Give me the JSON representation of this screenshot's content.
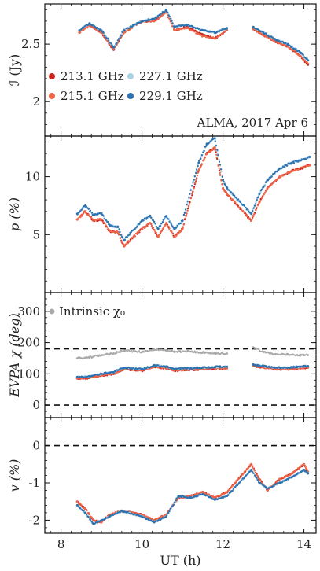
{
  "chart_data": [
    {
      "type": "scatter",
      "ylabel": "ℐ (Jy)",
      "ylim": [
        1.7,
        2.85
      ],
      "yticks": [
        2.0,
        2.5
      ],
      "xlim": [
        7.6,
        14.3
      ],
      "annotation": "ALMA, 2017 Apr 6",
      "legend": {
        "placement": "center-left",
        "entries": [
          {
            "label": "213.1 GHz",
            "color": "#c7261e"
          },
          {
            "label": "227.1 GHz",
            "color": "#a9d3e5"
          },
          {
            "label": "215.1 GHz",
            "color": "#ef6548"
          },
          {
            "label": "229.1 GHz",
            "color": "#2c72b0"
          }
        ]
      },
      "series": [
        {
          "name": "213.1 GHz",
          "color": "#c7261e",
          "x": [
            8.45,
            8.7,
            9.0,
            9.3,
            9.55,
            10.0,
            10.3,
            10.6,
            10.8,
            11.1,
            11.5,
            11.8,
            12.1,
            12.75,
            13.0,
            13.3,
            13.6,
            13.9,
            14.1
          ],
          "values": [
            2.6,
            2.67,
            2.6,
            2.45,
            2.6,
            2.7,
            2.7,
            2.78,
            2.62,
            2.65,
            2.58,
            2.55,
            2.62,
            2.63,
            2.58,
            2.52,
            2.48,
            2.4,
            2.32
          ]
        },
        {
          "name": "215.1 GHz",
          "color": "#ef6548",
          "x": [
            8.45,
            8.7,
            9.0,
            9.3,
            9.55,
            10.0,
            10.3,
            10.6,
            10.8,
            11.1,
            11.5,
            11.8,
            12.1,
            12.75,
            13.0,
            13.3,
            13.6,
            13.9,
            14.1
          ],
          "values": [
            2.6,
            2.66,
            2.6,
            2.46,
            2.6,
            2.7,
            2.7,
            2.78,
            2.62,
            2.64,
            2.57,
            2.55,
            2.62,
            2.63,
            2.58,
            2.52,
            2.48,
            2.4,
            2.33
          ]
        },
        {
          "name": "227.1 GHz",
          "color": "#a9d3e5",
          "x": [
            8.45,
            8.7,
            9.0,
            9.3,
            9.55,
            10.0,
            10.3,
            10.6,
            10.8,
            11.1,
            11.5,
            11.8,
            12.1,
            12.75,
            13.0,
            13.3,
            13.6,
            13.9,
            14.1
          ],
          "values": [
            2.62,
            2.68,
            2.62,
            2.47,
            2.62,
            2.7,
            2.72,
            2.8,
            2.65,
            2.67,
            2.62,
            2.6,
            2.64,
            2.65,
            2.6,
            2.54,
            2.5,
            2.43,
            2.36
          ]
        },
        {
          "name": "229.1 GHz",
          "color": "#2c72b0",
          "x": [
            8.45,
            8.7,
            9.0,
            9.3,
            9.55,
            10.0,
            10.3,
            10.6,
            10.8,
            11.1,
            11.5,
            11.8,
            12.1,
            12.75,
            13.0,
            13.3,
            13.6,
            13.9,
            14.1
          ],
          "values": [
            2.62,
            2.68,
            2.62,
            2.47,
            2.62,
            2.7,
            2.72,
            2.8,
            2.65,
            2.67,
            2.62,
            2.6,
            2.64,
            2.65,
            2.6,
            2.54,
            2.5,
            2.43,
            2.36
          ]
        }
      ]
    },
    {
      "type": "scatter",
      "ylabel": "p (%)",
      "ylim": [
        0,
        13.5
      ],
      "yticks": [
        5,
        10
      ],
      "xlim": [
        7.6,
        14.3
      ],
      "series": [
        {
          "name": "213.1 GHz",
          "color": "#c7261e",
          "x": [
            8.4,
            8.6,
            8.8,
            9.0,
            9.2,
            9.4,
            9.55,
            10.0,
            10.2,
            10.4,
            10.6,
            10.8,
            11.0,
            11.4,
            11.6,
            11.8,
            12.0,
            12.1,
            12.7,
            12.9,
            13.1,
            13.4,
            13.7,
            14.0,
            14.15
          ],
          "values": [
            6.3,
            7.0,
            6.2,
            6.3,
            5.3,
            5.2,
            4.0,
            5.5,
            6.0,
            4.8,
            6.0,
            4.8,
            5.5,
            10.5,
            12.0,
            12.5,
            9.0,
            8.5,
            6.2,
            7.8,
            9.0,
            10.0,
            10.5,
            10.8,
            11.0
          ]
        },
        {
          "name": "215.1 GHz",
          "color": "#ef6548",
          "x": [
            8.4,
            8.6,
            8.8,
            9.0,
            9.2,
            9.4,
            9.55,
            10.0,
            10.2,
            10.4,
            10.6,
            10.8,
            11.0,
            11.4,
            11.6,
            11.8,
            12.0,
            12.1,
            12.7,
            12.9,
            13.1,
            13.4,
            13.7,
            14.0,
            14.15
          ],
          "values": [
            6.3,
            7.0,
            6.2,
            6.3,
            5.3,
            5.2,
            4.0,
            5.5,
            6.0,
            4.8,
            6.0,
            4.8,
            5.5,
            10.5,
            12.0,
            12.5,
            9.0,
            8.5,
            6.2,
            7.8,
            9.0,
            10.0,
            10.5,
            10.8,
            11.0
          ]
        },
        {
          "name": "227.1 GHz",
          "color": "#a9d3e5",
          "x": [
            8.4,
            8.6,
            8.8,
            9.0,
            9.2,
            9.4,
            9.55,
            10.0,
            10.2,
            10.4,
            10.6,
            10.8,
            11.0,
            11.4,
            11.6,
            11.8,
            12.0,
            12.1,
            12.7,
            12.9,
            13.1,
            13.4,
            13.7,
            14.0,
            14.15
          ],
          "values": [
            6.8,
            7.5,
            6.7,
            6.8,
            5.8,
            5.7,
            4.5,
            6.2,
            6.6,
            5.5,
            6.6,
            5.5,
            6.2,
            11.2,
            12.8,
            13.3,
            9.7,
            9.0,
            6.8,
            8.5,
            9.7,
            10.7,
            11.2,
            11.5,
            11.7
          ]
        },
        {
          "name": "229.1 GHz",
          "color": "#2c72b0",
          "x": [
            8.4,
            8.6,
            8.8,
            9.0,
            9.2,
            9.4,
            9.55,
            10.0,
            10.2,
            10.4,
            10.6,
            10.8,
            11.0,
            11.4,
            11.6,
            11.8,
            12.0,
            12.1,
            12.7,
            12.9,
            13.1,
            13.4,
            13.7,
            14.0,
            14.15
          ],
          "values": [
            6.8,
            7.5,
            6.7,
            6.8,
            5.8,
            5.7,
            4.5,
            6.2,
            6.6,
            5.5,
            6.6,
            5.5,
            6.2,
            11.2,
            12.8,
            13.3,
            9.7,
            9.0,
            6.8,
            8.5,
            9.7,
            10.7,
            11.2,
            11.5,
            11.7
          ]
        }
      ]
    },
    {
      "type": "scatter",
      "ylabel": "EVPA χ (deg)",
      "ylim": [
        -40,
        360
      ],
      "yticks": [
        0,
        100,
        200,
        300
      ],
      "xlim": [
        7.6,
        14.3
      ],
      "hlines": [
        0,
        180
      ],
      "legend": {
        "placement": "top-left",
        "entries": [
          {
            "label": "Intrinsic χ₀",
            "color": "#aaaaaa"
          }
        ]
      },
      "series": [
        {
          "name": "Intrinsic χ₀",
          "color": "#aaaaaa",
          "x": [
            8.4,
            8.7,
            9.0,
            9.3,
            9.55,
            10.0,
            10.3,
            10.6,
            10.8,
            11.1,
            11.5,
            11.8,
            12.1,
            12.75,
            13.0,
            13.3,
            13.6,
            13.9,
            14.1
          ],
          "values": [
            150,
            152,
            160,
            165,
            175,
            170,
            178,
            175,
            170,
            172,
            168,
            165,
            165,
            185,
            170,
            162,
            162,
            160,
            160
          ]
        },
        {
          "name": "213.1 GHz",
          "color": "#c7261e",
          "x": [
            8.4,
            8.7,
            9.0,
            9.3,
            9.55,
            10.0,
            10.3,
            10.6,
            10.8,
            11.1,
            11.5,
            11.8,
            12.1,
            12.75,
            13.0,
            13.3,
            13.6,
            13.9,
            14.1
          ],
          "values": [
            85,
            87,
            95,
            100,
            115,
            110,
            122,
            118,
            110,
            113,
            115,
            117,
            118,
            125,
            120,
            115,
            115,
            118,
            120
          ]
        },
        {
          "name": "215.1 GHz",
          "color": "#ef6548",
          "x": [
            8.4,
            8.7,
            9.0,
            9.3,
            9.55,
            10.0,
            10.3,
            10.6,
            10.8,
            11.1,
            11.5,
            11.8,
            12.1,
            12.75,
            13.0,
            13.3,
            13.6,
            13.9,
            14.1
          ],
          "values": [
            86,
            88,
            96,
            101,
            116,
            111,
            123,
            119,
            111,
            114,
            116,
            118,
            119,
            126,
            121,
            116,
            116,
            119,
            121
          ]
        },
        {
          "name": "227.1 GHz",
          "color": "#a9d3e5",
          "x": [
            8.4,
            8.7,
            9.0,
            9.3,
            9.55,
            10.0,
            10.3,
            10.6,
            10.8,
            11.1,
            11.5,
            11.8,
            12.1,
            12.75,
            13.0,
            13.3,
            13.6,
            13.9,
            14.1
          ],
          "values": [
            90,
            92,
            100,
            105,
            120,
            115,
            127,
            123,
            115,
            118,
            120,
            122,
            123,
            130,
            125,
            120,
            120,
            123,
            125
          ]
        },
        {
          "name": "229.1 GHz",
          "color": "#2c72b0",
          "x": [
            8.4,
            8.7,
            9.0,
            9.3,
            9.55,
            10.0,
            10.3,
            10.6,
            10.8,
            11.1,
            11.5,
            11.8,
            12.1,
            12.75,
            13.0,
            13.3,
            13.6,
            13.9,
            14.1
          ],
          "values": [
            90,
            92,
            100,
            105,
            120,
            115,
            127,
            123,
            115,
            118,
            120,
            122,
            123,
            130,
            125,
            120,
            120,
            123,
            125
          ]
        }
      ]
    },
    {
      "type": "scatter",
      "ylabel": "v (%)",
      "xlabel": "UT (h)",
      "ylim": [
        -2.35,
        0.75
      ],
      "yticks": [
        -2,
        -1,
        0
      ],
      "xlim": [
        7.6,
        14.3
      ],
      "xticks": [
        8,
        10,
        12,
        14
      ],
      "hlines": [
        0
      ],
      "series": [
        {
          "name": "213.1 GHz",
          "color": "#c7261e",
          "x": [
            8.4,
            8.6,
            8.8,
            9.0,
            9.2,
            9.5,
            10.0,
            10.3,
            10.6,
            10.9,
            11.2,
            11.5,
            11.8,
            12.1,
            12.7,
            12.9,
            13.1,
            13.4,
            13.7,
            14.0,
            14.1
          ],
          "values": [
            -1.5,
            -1.7,
            -2.0,
            -2.05,
            -1.85,
            -1.75,
            -1.85,
            -2.0,
            -1.85,
            -1.4,
            -1.35,
            -1.25,
            -1.4,
            -1.25,
            -0.5,
            -0.9,
            -1.2,
            -0.9,
            -0.75,
            -0.5,
            -0.7
          ]
        },
        {
          "name": "215.1 GHz",
          "color": "#ef6548",
          "x": [
            8.4,
            8.6,
            8.8,
            9.0,
            9.2,
            9.5,
            10.0,
            10.3,
            10.6,
            10.9,
            11.2,
            11.5,
            11.8,
            12.1,
            12.7,
            12.9,
            13.1,
            13.4,
            13.7,
            14.0,
            14.1
          ],
          "values": [
            -1.5,
            -1.7,
            -2.0,
            -2.05,
            -1.85,
            -1.75,
            -1.85,
            -2.0,
            -1.85,
            -1.4,
            -1.35,
            -1.25,
            -1.4,
            -1.25,
            -0.5,
            -0.9,
            -1.2,
            -0.9,
            -0.75,
            -0.5,
            -0.7
          ]
        },
        {
          "name": "227.1 GHz",
          "color": "#a9d3e5",
          "x": [
            8.4,
            8.6,
            8.8,
            9.0,
            9.2,
            9.5,
            10.0,
            10.3,
            10.6,
            10.9,
            11.2,
            11.5,
            11.8,
            12.1,
            12.7,
            12.9,
            13.1,
            13.4,
            13.7,
            14.0,
            14.1
          ],
          "values": [
            -1.6,
            -1.8,
            -2.1,
            -2.0,
            -1.9,
            -1.75,
            -1.9,
            -2.05,
            -1.9,
            -1.35,
            -1.4,
            -1.3,
            -1.45,
            -1.35,
            -0.65,
            -1.0,
            -1.15,
            -1.0,
            -0.85,
            -0.65,
            -0.75
          ]
        },
        {
          "name": "229.1 GHz",
          "color": "#2c72b0",
          "x": [
            8.4,
            8.6,
            8.8,
            9.0,
            9.2,
            9.5,
            10.0,
            10.3,
            10.6,
            10.9,
            11.2,
            11.5,
            11.8,
            12.1,
            12.7,
            12.9,
            13.1,
            13.4,
            13.7,
            14.0,
            14.1
          ],
          "values": [
            -1.6,
            -1.8,
            -2.1,
            -2.0,
            -1.9,
            -1.75,
            -1.9,
            -2.05,
            -1.9,
            -1.35,
            -1.4,
            -1.3,
            -1.45,
            -1.35,
            -0.65,
            -1.0,
            -1.15,
            -1.0,
            -0.85,
            -0.65,
            -0.75
          ]
        }
      ]
    }
  ]
}
